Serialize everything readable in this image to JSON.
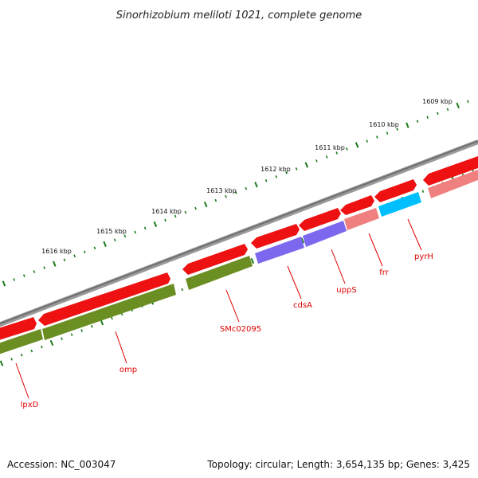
{
  "title": "Sinorhizobium meliloti 1021, complete genome",
  "footer": {
    "accession": "Accession: NC_003047",
    "summary": "Topology: circular; Length: 3,654,135 bp; Genes: 3,425"
  },
  "ruler": {
    "labels": [
      "1609 kbp",
      "1610 kbp",
      "1611 kbp",
      "1612 kbp",
      "1613 kbp",
      "1614 kbp",
      "1615 kbp",
      "1616 kbp"
    ],
    "tick_color": "#1a7a1a"
  },
  "colors": {
    "backbone": "#7a7a7a",
    "gene_red": "#ee1111",
    "label_red": "#dd0000",
    "olive": "#6b8e23",
    "purple": "#7b68ee",
    "pink": "#f08080",
    "cyan": "#00bfff"
  },
  "genes": [
    {
      "label": "pyrH"
    },
    {
      "label": "frr"
    },
    {
      "label": "uppS"
    },
    {
      "label": "cdsA"
    },
    {
      "label": "SMc02095"
    },
    {
      "label": "omp"
    },
    {
      "label": "lpxD"
    }
  ]
}
